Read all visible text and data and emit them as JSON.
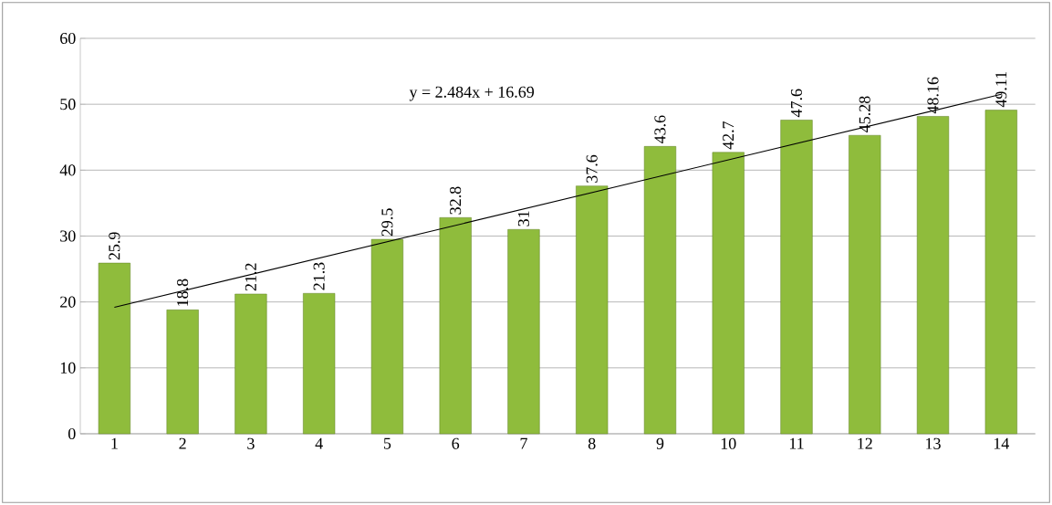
{
  "chart_data": {
    "type": "bar",
    "x": [
      1,
      2,
      3,
      4,
      5,
      6,
      7,
      8,
      9,
      10,
      11,
      12,
      13,
      14
    ],
    "series": [
      {
        "color": "#8fbc3c",
        "values": [
          25.9,
          18.8,
          21.2,
          21.3,
          29.5,
          32.8,
          31,
          37.6,
          43.6,
          42.7,
          47.6,
          45.28,
          48.16,
          49.11
        ],
        "value_labels": [
          "25.9",
          "18.8",
          "21.2",
          "21.3",
          "29.5",
          "32.8",
          "31",
          "37.6",
          "43.6",
          "42.7",
          "47.6",
          "45.28",
          "48.16",
          "49.11"
        ]
      },
      {
        "type": "line",
        "color": "#000000",
        "x": [
          1,
          14
        ],
        "values": [
          19.2,
          51.5
        ]
      }
    ],
    "xlim": [
      0.5,
      14.5
    ],
    "xticks": [
      1,
      2,
      3,
      4,
      5,
      6,
      7,
      8,
      9,
      10,
      11,
      12,
      13,
      14
    ],
    "ylim": [
      0,
      60
    ],
    "yticks": [
      0,
      10,
      20,
      30,
      40,
      50,
      60
    ],
    "grid": "y",
    "annotations": [
      "y = 2.484x + 16.69"
    ]
  }
}
